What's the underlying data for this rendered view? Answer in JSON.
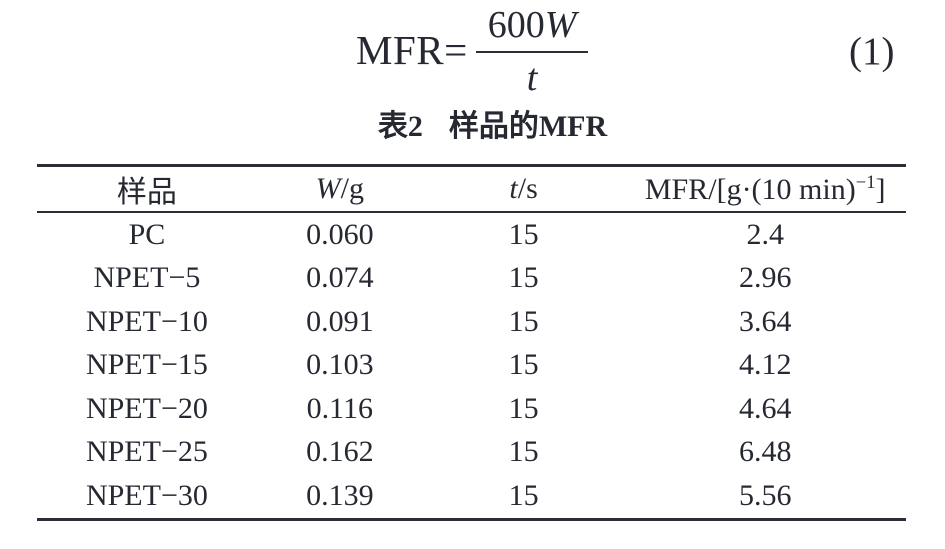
{
  "equation": {
    "lhs": "MFR=",
    "numerator_coeff": "600",
    "numerator_var": "W",
    "denominator": "t",
    "number": "(1)"
  },
  "caption": {
    "label": "表2",
    "title": "样品的MFR"
  },
  "table": {
    "header": {
      "sample": "样品",
      "w_var": "W",
      "w_unit": "/g",
      "t_var": "t",
      "t_unit": "/s",
      "mfr_prefix": "MFR/[g·(10 min)",
      "mfr_sup": "−1",
      "mfr_suffix": "]"
    },
    "rows": [
      {
        "sample": "PC",
        "w": "0.060",
        "t": "15",
        "mfr": "2.4"
      },
      {
        "sample": "NPET−5",
        "w": "0.074",
        "t": "15",
        "mfr": "2.96"
      },
      {
        "sample": "NPET−10",
        "w": "0.091",
        "t": "15",
        "mfr": "3.64"
      },
      {
        "sample": "NPET−15",
        "w": "0.103",
        "t": "15",
        "mfr": "4.12"
      },
      {
        "sample": "NPET−20",
        "w": "0.116",
        "t": "15",
        "mfr": "4.64"
      },
      {
        "sample": "NPET−25",
        "w": "0.162",
        "t": "15",
        "mfr": "6.48"
      },
      {
        "sample": "NPET−30",
        "w": "0.139",
        "t": "15",
        "mfr": "5.56"
      }
    ]
  }
}
